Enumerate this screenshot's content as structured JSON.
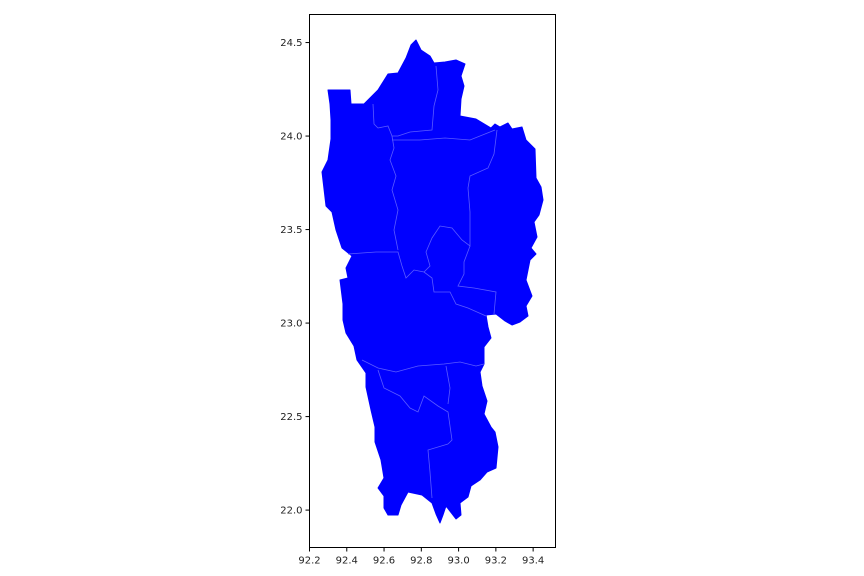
{
  "map": {
    "fill_color": "#0000ff",
    "boundary_color": "#5a5aff",
    "axis_color": "#000000",
    "background": "#ffffff",
    "x_ticks": [
      "92.2",
      "92.4",
      "92.6",
      "92.8",
      "93.0",
      "93.2",
      "93.4"
    ],
    "y_ticks": [
      "22.0",
      "22.5",
      "23.0",
      "23.5",
      "24.0",
      "24.5"
    ],
    "xlim": [
      92.2,
      93.52
    ],
    "ylim": [
      21.8,
      24.65
    ],
    "region_count": 8
  }
}
